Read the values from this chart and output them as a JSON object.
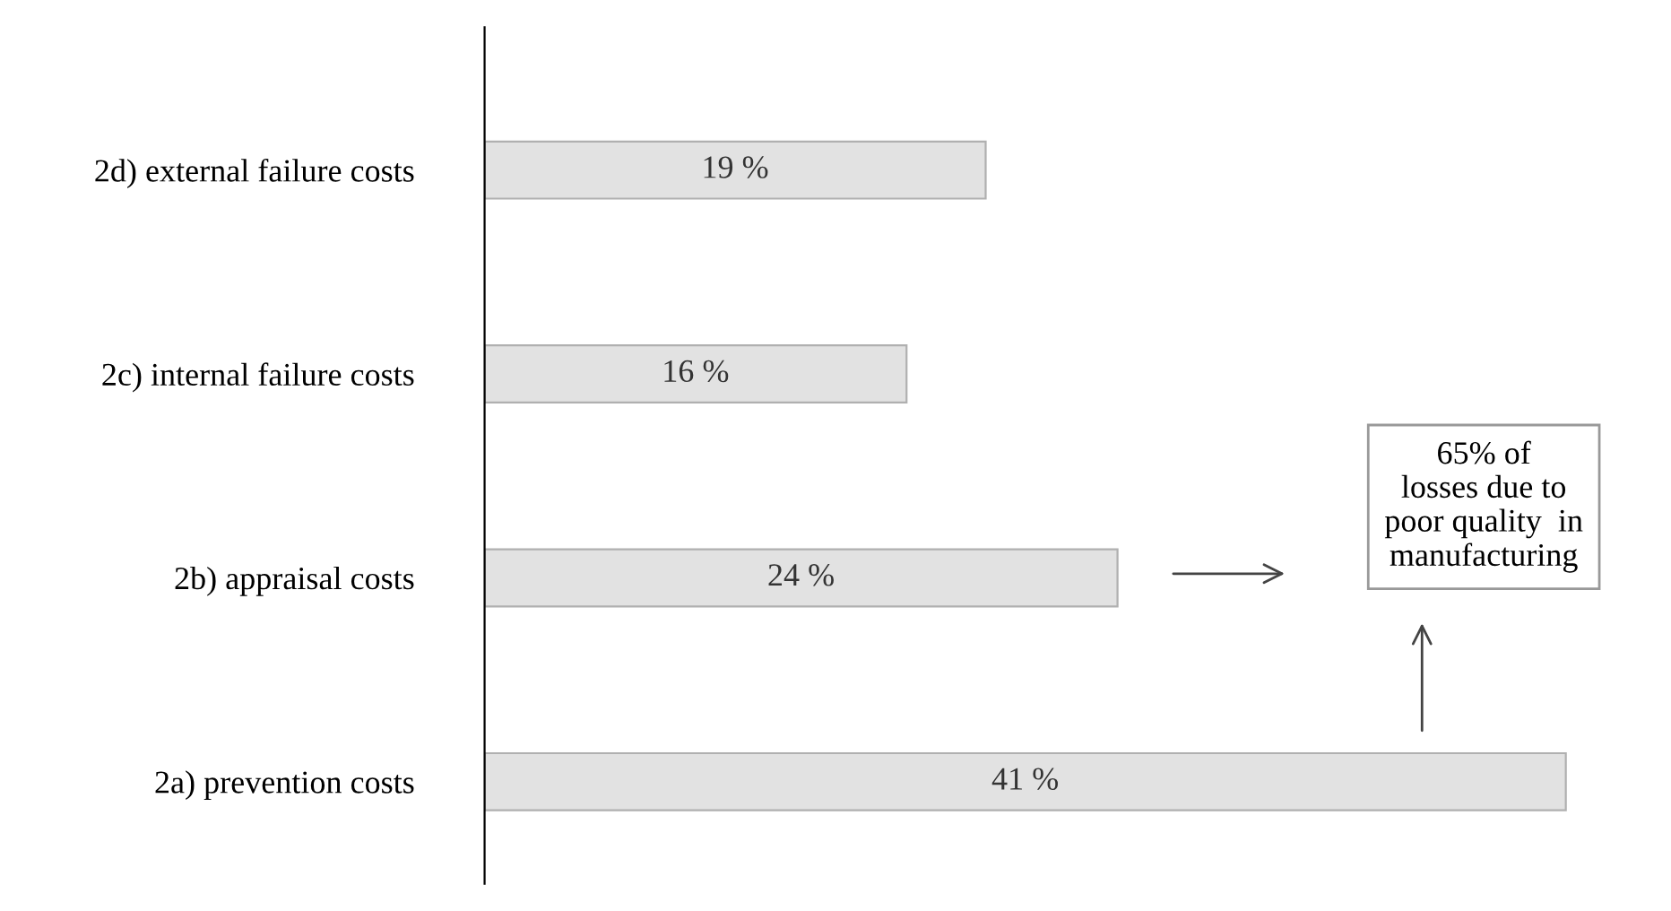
{
  "chart_data": {
    "type": "bar",
    "orientation": "horizontal",
    "categories": [
      "2d) external failure costs",
      "2c) internal failure costs",
      "2b) appraisal costs",
      "2a) prevention costs"
    ],
    "values": [
      19,
      16,
      24,
      41
    ],
    "value_labels": [
      "19 %",
      "16 %",
      "24 %",
      "41 %"
    ],
    "color": "#e2e2e2",
    "tick_labels": "y",
    "grid": false,
    "legend": false,
    "annotations": [
      "65% of\nlosses due to\npoor quality  in\nmanufacturing"
    ]
  }
}
